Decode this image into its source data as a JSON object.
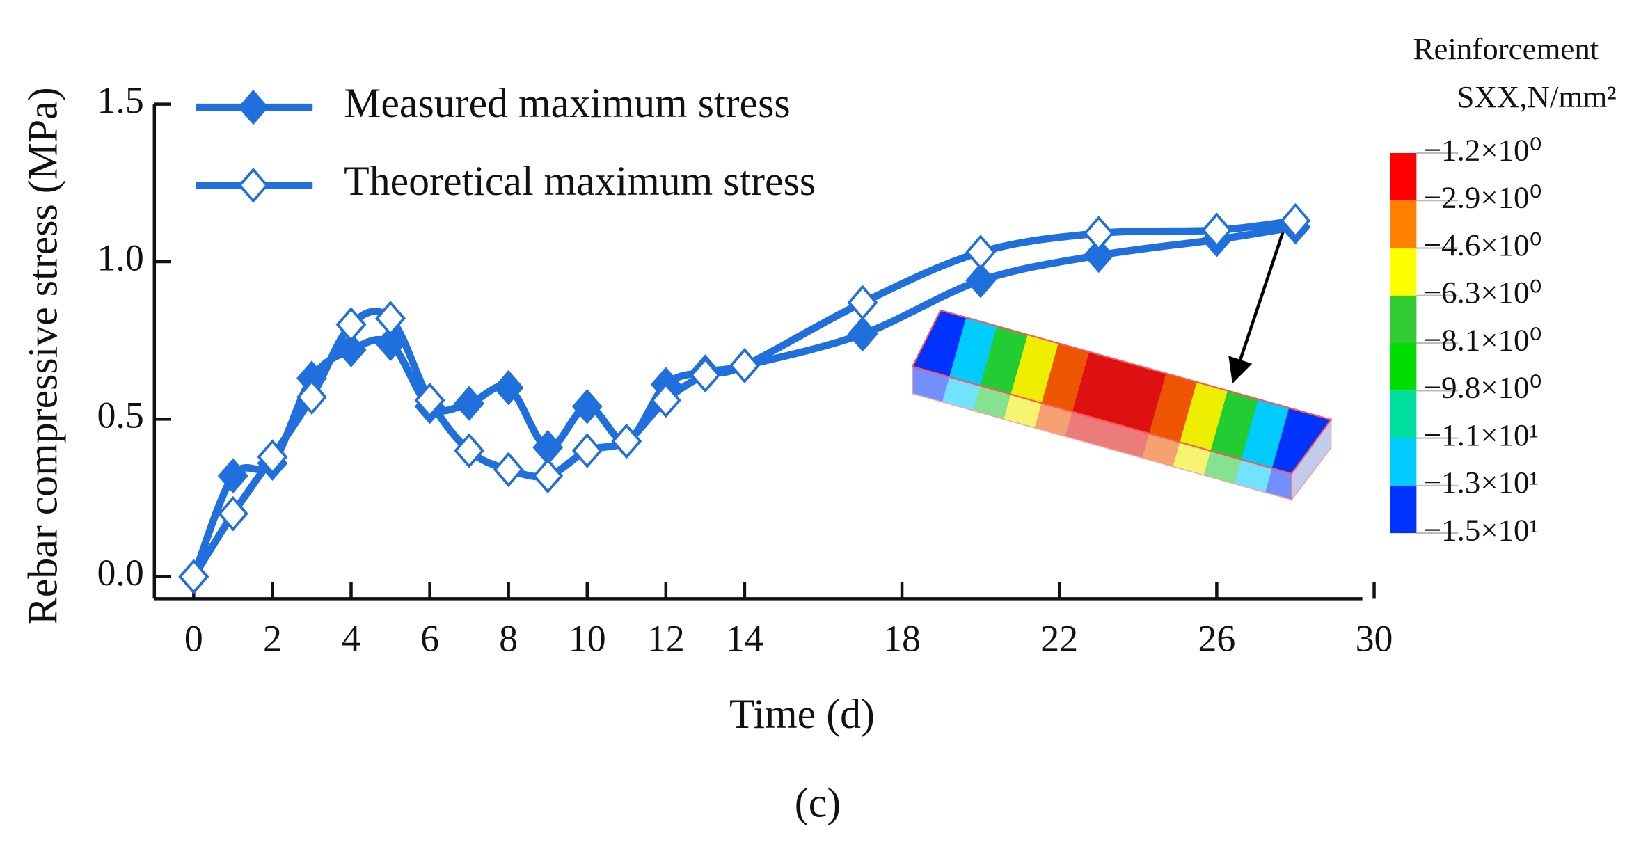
{
  "chart_data": {
    "type": "line",
    "xlabel": "Time (d)",
    "ylabel": "Rebar compressive stress (MPa)",
    "caption": "(c)",
    "x": [
      0,
      1,
      2,
      3,
      4,
      5,
      6,
      7,
      8,
      9,
      10,
      11,
      12,
      13,
      14,
      17,
      20,
      23,
      26,
      28
    ],
    "series": [
      {
        "name": "Measured maximum stress",
        "color": "#1f6fdc",
        "marker": "filled-diamond",
        "values": [
          0,
          0.32,
          0.36,
          0.63,
          0.72,
          0.74,
          0.54,
          0.55,
          0.6,
          0.41,
          0.54,
          0.43,
          0.61,
          0.65,
          0.67,
          0.77,
          0.94,
          1.02,
          1.07,
          1.11
        ]
      },
      {
        "name": "Theoretical maximum stress",
        "color": "#1f6fdc",
        "marker": "open-diamond",
        "values": [
          0,
          0.2,
          0.38,
          0.57,
          0.8,
          0.82,
          0.56,
          0.4,
          0.34,
          0.32,
          0.4,
          0.43,
          0.56,
          0.64,
          0.67,
          0.87,
          1.03,
          1.09,
          1.1,
          1.13
        ]
      }
    ],
    "xlim": [
      -1,
      29.7
    ],
    "ylim": [
      -0.07,
      1.5
    ],
    "xticks": [
      0,
      2,
      4,
      6,
      8,
      10,
      12,
      14,
      18,
      22,
      26,
      30
    ],
    "yticks": [
      {
        "value": 0,
        "label": "0.0"
      },
      0.5,
      {
        "value": 1,
        "label": "1.0"
      },
      1.5
    ],
    "legend": "upper left",
    "colorbar": {
      "title": [
        "Reinforcement",
        "SXX,N/mm²"
      ],
      "labels": [
        "−1.2×10⁰",
        "−2.9×10⁰",
        "−4.6×10⁰",
        "−6.3×10⁰",
        "−8.1×10⁰",
        "−9.8×10⁰",
        "−1.1×10¹",
        "−1.3×10¹",
        "−1.5×10¹"
      ],
      "colors": [
        "#ff0000",
        "#ff8000",
        "#ffff00",
        "#33cc33",
        "#00dd00",
        "#00e0a0",
        "#00ccff",
        "#0033ff"
      ]
    }
  }
}
